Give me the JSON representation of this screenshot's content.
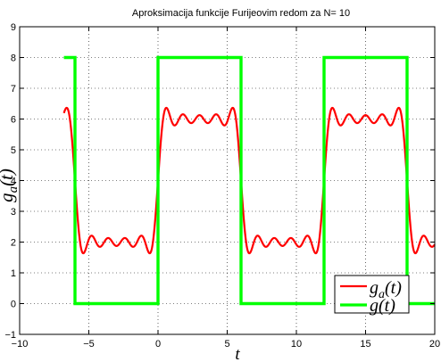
{
  "chart_data": {
    "type": "line",
    "title": "Aproksimacija funkcije Furijeovim redom za N= 10",
    "xlabel": "t",
    "ylabel": "g_a(t)",
    "ylabel_display": "ga(t)",
    "xlim": [
      -10,
      20
    ],
    "ylim": [
      -1,
      9
    ],
    "x_ticks": [
      "−10",
      "−5",
      "0",
      "5",
      "10",
      "15",
      "20"
    ],
    "x_tick_values": [
      -10,
      -5,
      0,
      5,
      10,
      15,
      20
    ],
    "y_ticks": [
      "−1",
      "0",
      "1",
      "2",
      "3",
      "4",
      "5",
      "6",
      "7",
      "8",
      "9"
    ],
    "y_tick_values": [
      -1,
      0,
      1,
      2,
      3,
      4,
      5,
      6,
      7,
      8,
      9
    ],
    "grid": true,
    "legend_position": "bottom-right",
    "series": [
      {
        "name": "g_a(t)",
        "label_display": "ga(t)",
        "color": "#ff0000",
        "kind": "fourier_approximation",
        "harmonics": 10,
        "period": 12,
        "amplitude": 8,
        "t_range": [
          -6.8,
          20
        ]
      },
      {
        "name": "g(t)",
        "label_display": "g(t)",
        "color": "#00ff00",
        "kind": "square_wave",
        "x": [
          -6.8,
          -6,
          -6,
          0,
          0,
          6,
          6,
          12,
          12,
          18,
          18,
          20
        ],
        "y": [
          8,
          8,
          0,
          0,
          8,
          8,
          0,
          0,
          8,
          8,
          0,
          0
        ]
      }
    ]
  }
}
